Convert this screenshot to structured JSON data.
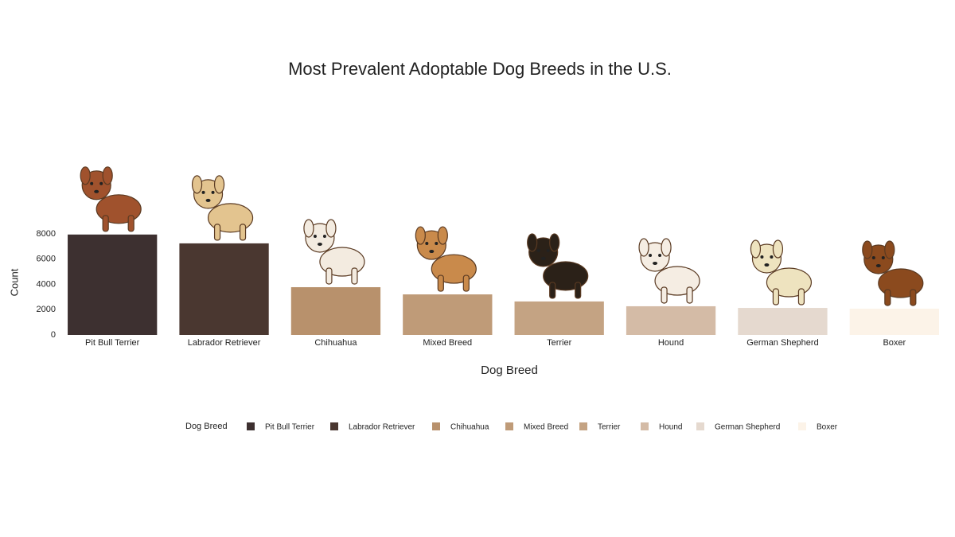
{
  "chart_data": {
    "type": "bar",
    "title": "Most Prevalent Adoptable Dog Breeds in the U.S.",
    "x_label": "Dog Breed",
    "y_label": "Count",
    "legend_title": "Dog Breed",
    "categories": [
      "Pit Bull Terrier",
      "Labrador Retriever",
      "Chihuahua",
      "Mixed Breed",
      "Terrier",
      "Hound",
      "German Shepherd",
      "Boxer"
    ],
    "values": [
      7950,
      7250,
      3780,
      3210,
      2650,
      2270,
      2140,
      2080
    ],
    "colors": [
      "#3d3030",
      "#4a3730",
      "#b8916c",
      "#bf9b78",
      "#c4a383",
      "#d4bba6",
      "#e5d9cf",
      "#fcf3e8"
    ],
    "ylim": [
      0,
      8000
    ],
    "yticks": [
      0,
      2000,
      4000,
      6000,
      8000
    ],
    "grid": false,
    "legend": "bottom"
  }
}
